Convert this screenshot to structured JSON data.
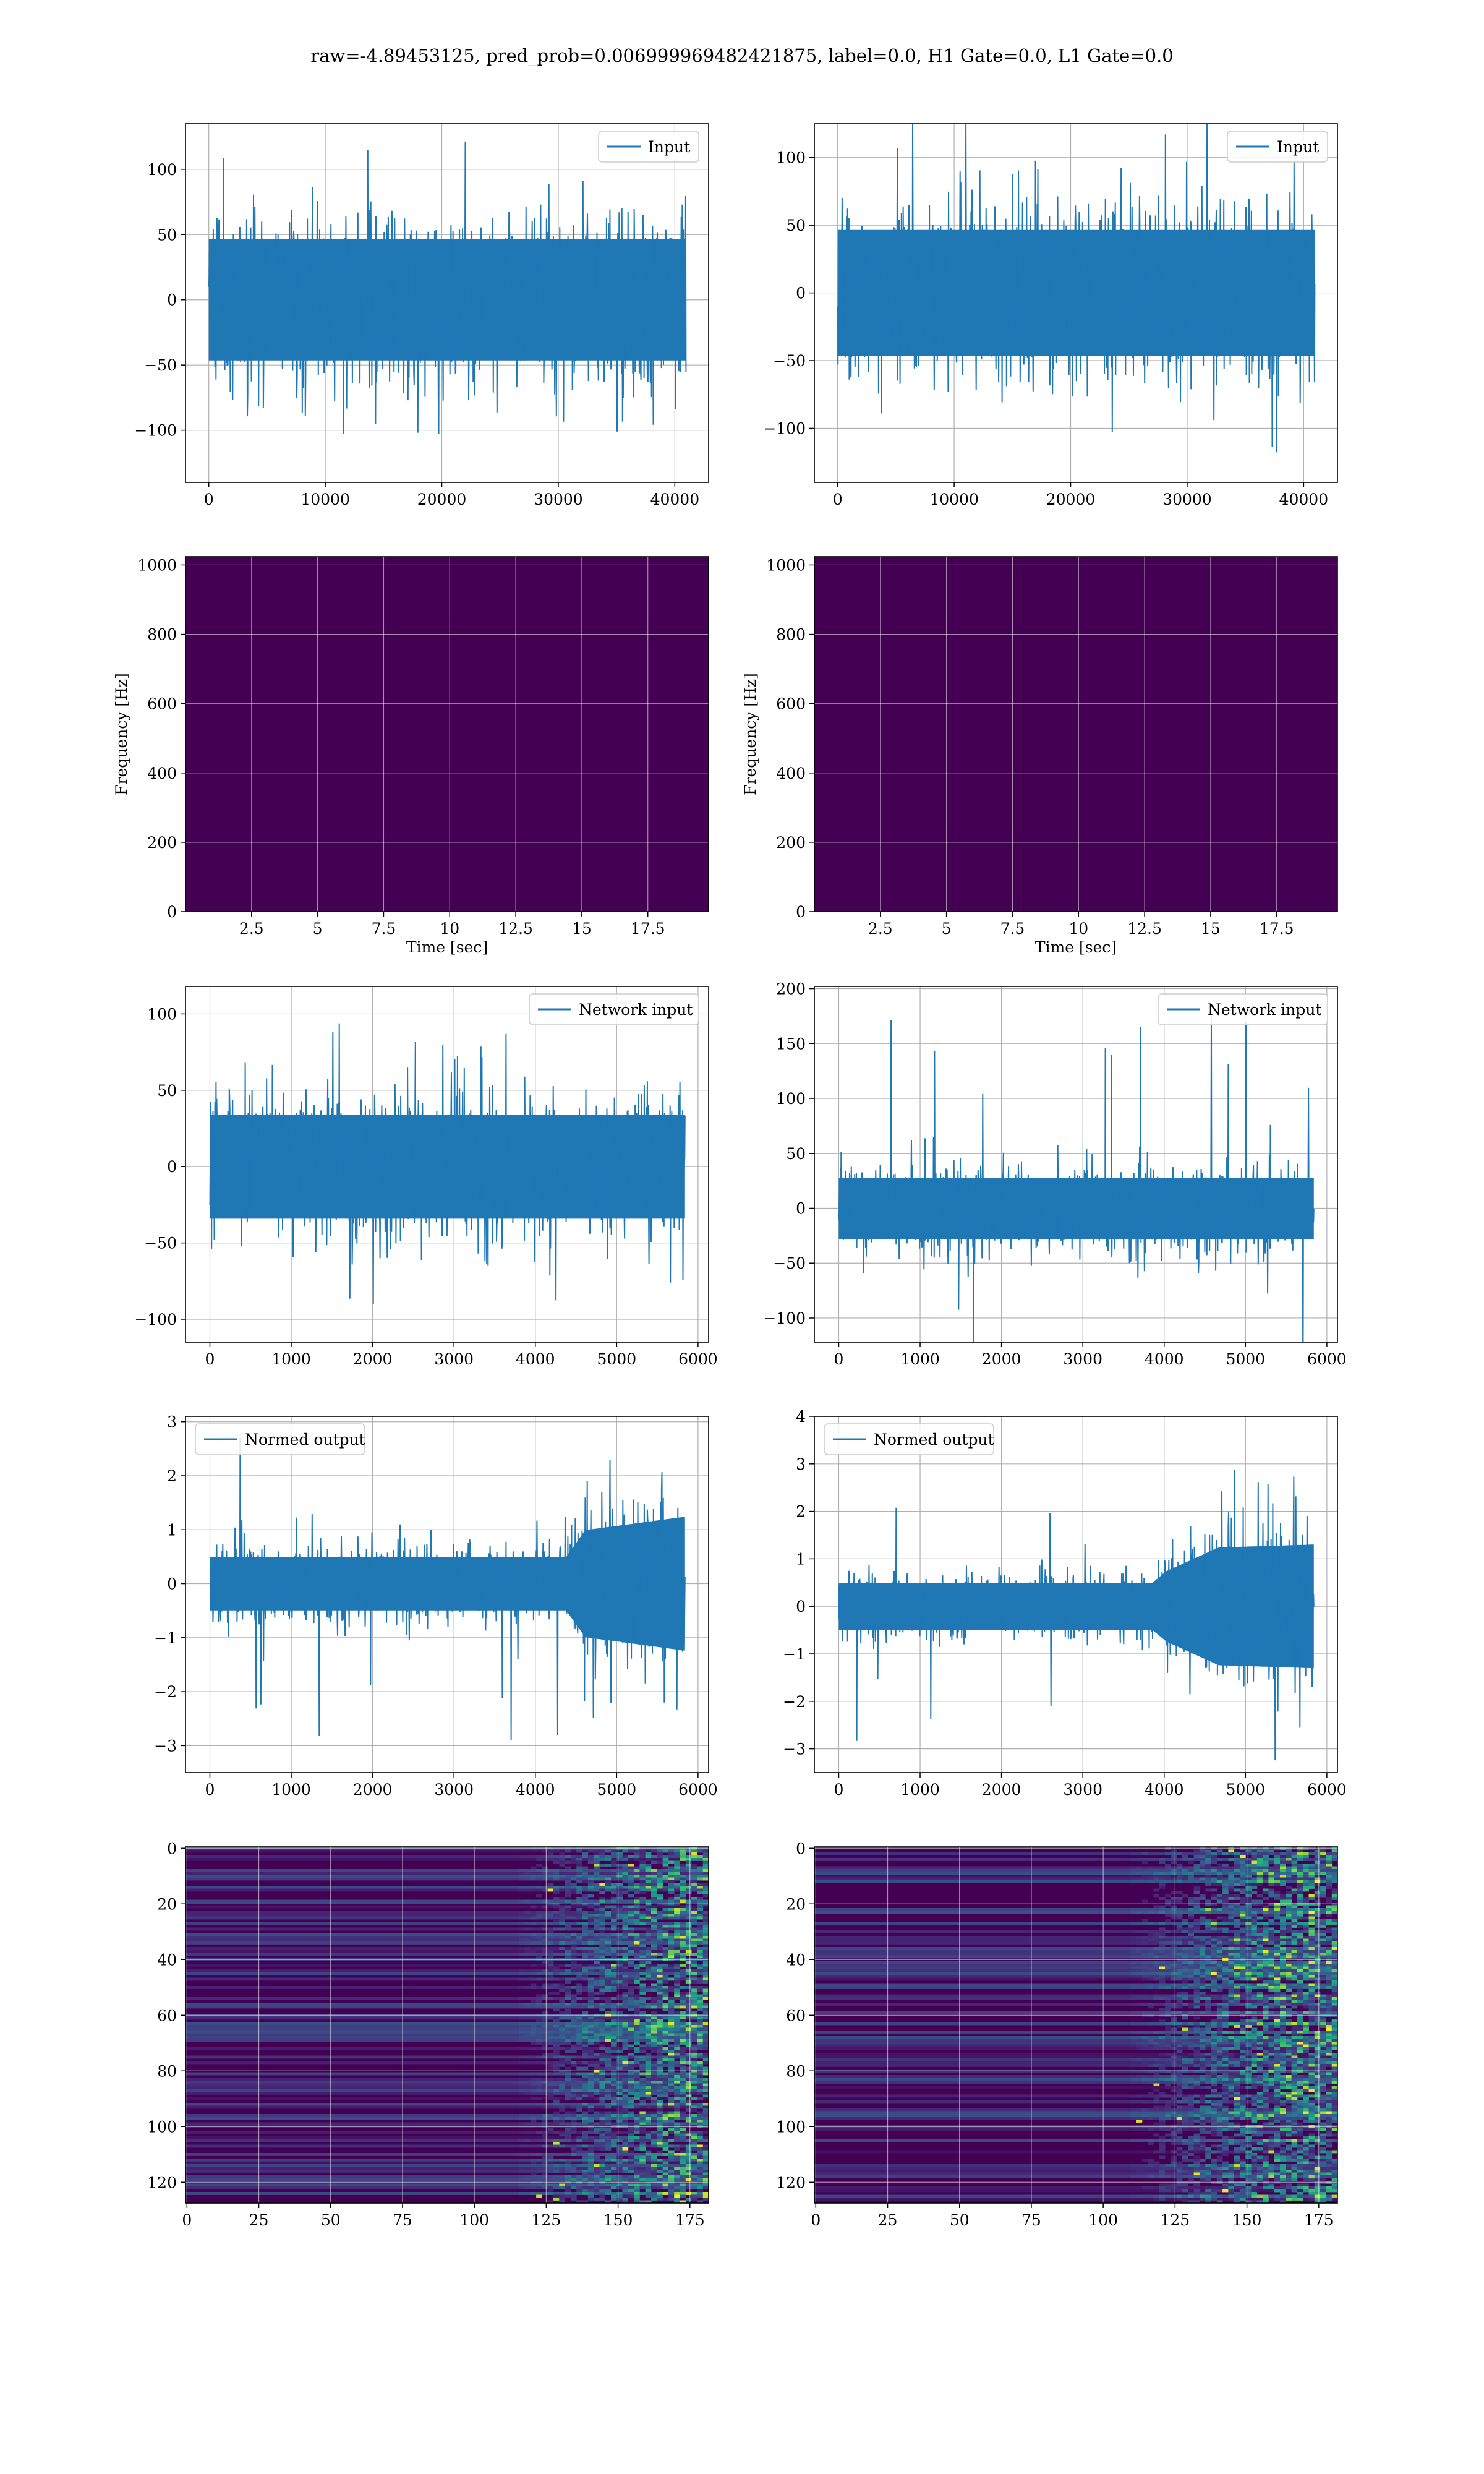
{
  "title": "raw=-4.89453125, pred_prob=0.006999969482421875, label=0.0, H1 Gate=0.0, L1 Gate=0.0",
  "colors": {
    "line": "#1f77b4",
    "grid": "#b0b0b0",
    "axes": "#000000"
  },
  "colormap": [
    "#440154",
    "#482475",
    "#414487",
    "#355f8d",
    "#2a788e",
    "#21908d",
    "#22a884",
    "#42be71",
    "#7ad151",
    "#bddf26",
    "#fde725"
  ],
  "chart_data": [
    {
      "type": "line",
      "panel": "row1-left",
      "legend": {
        "label": "Input",
        "loc": "upper right"
      },
      "xlim": [
        -2000,
        42900
      ],
      "ylim": [
        -140,
        135
      ],
      "xticks": [
        0,
        10000,
        20000,
        30000,
        40000
      ],
      "yticks": [
        -100,
        -50,
        0,
        50,
        100
      ],
      "series": [
        {
          "name": "Input",
          "x_range": [
            0,
            40960
          ],
          "typical_amplitude": 75,
          "peak_amplitude": 125,
          "envelope": [
            [
              0,
              75
            ],
            [
              1,
              75
            ]
          ]
        }
      ]
    },
    {
      "type": "line",
      "panel": "row1-right",
      "legend": {
        "label": "Input",
        "loc": "upper right"
      },
      "xlim": [
        -2000,
        42900
      ],
      "ylim": [
        -140,
        125
      ],
      "xticks": [
        0,
        10000,
        20000,
        30000,
        40000
      ],
      "yticks": [
        -100,
        -50,
        0,
        50,
        100
      ],
      "series": [
        {
          "name": "Input",
          "x_range": [
            0,
            40960
          ],
          "typical_amplitude": 75,
          "peak_amplitude": 130,
          "envelope": [
            [
              0,
              75
            ],
            [
              1,
              75
            ]
          ]
        }
      ]
    },
    {
      "type": "heatmap",
      "panel": "row2-left",
      "xlabel": "Time [sec]",
      "ylabel": "Frequency [Hz]",
      "xlim": [
        0,
        19.8
      ],
      "ylim": [
        0,
        1024
      ],
      "xticks": [
        2.5,
        5.0,
        7.5,
        10.0,
        12.5,
        15.0,
        17.5
      ],
      "yticks": [
        0,
        200,
        400,
        600,
        800,
        1000
      ],
      "description_band": [
        [
          440,
          520,
          0.15
        ]
      ]
    },
    {
      "type": "heatmap",
      "panel": "row2-right",
      "xlabel": "Time [sec]",
      "ylabel": "Frequency [Hz]",
      "xlim": [
        0,
        19.8
      ],
      "ylim": [
        0,
        1024
      ],
      "xticks": [
        2.5,
        5.0,
        7.5,
        10.0,
        12.5,
        15.0,
        17.5
      ],
      "yticks": [
        0,
        200,
        400,
        600,
        800,
        1000
      ],
      "description_band": [
        [
          460,
          520,
          0.15
        ]
      ]
    },
    {
      "type": "line",
      "panel": "row3-left",
      "legend": {
        "label": "Network input",
        "loc": "upper right"
      },
      "xlim": [
        -300,
        6130
      ],
      "ylim": [
        -115,
        118
      ],
      "xticks": [
        0,
        1000,
        2000,
        3000,
        4000,
        5000,
        6000
      ],
      "yticks": [
        -100,
        -50,
        0,
        50,
        100
      ],
      "series": [
        {
          "name": "Network input",
          "x_range": [
            0,
            5840
          ],
          "typical_amplitude": 55,
          "peak_amplitude": 105,
          "envelope": [
            [
              0,
              55
            ],
            [
              1,
              55
            ]
          ]
        }
      ]
    },
    {
      "type": "line",
      "panel": "row3-right",
      "legend": {
        "label": "Network input",
        "loc": "upper right"
      },
      "xlim": [
        -300,
        6130
      ],
      "ylim": [
        -122,
        202
      ],
      "xticks": [
        0,
        1000,
        2000,
        3000,
        4000,
        5000,
        6000
      ],
      "yticks": [
        -100,
        -50,
        0,
        50,
        100,
        150,
        200
      ],
      "series": [
        {
          "name": "Network input",
          "x_range": [
            0,
            5840
          ],
          "typical_amplitude": 45,
          "peak_amplitude": 188,
          "envelope": [
            [
              0,
              45
            ],
            [
              1,
              45
            ]
          ]
        }
      ]
    },
    {
      "type": "line",
      "panel": "row4-left",
      "legend": {
        "label": "Normed output",
        "loc": "upper left"
      },
      "xlim": [
        -300,
        6130
      ],
      "ylim": [
        -3.5,
        3.1
      ],
      "xticks": [
        0,
        1000,
        2000,
        3000,
        4000,
        5000,
        6000
      ],
      "yticks": [
        -3,
        -2,
        -1,
        0,
        1,
        2,
        3
      ],
      "series": [
        {
          "name": "Normed output",
          "x_range": [
            0,
            5840
          ],
          "typical_amplitude": 0.8,
          "peak_amplitude": 2.9,
          "envelope": [
            [
              0,
              0.8
            ],
            [
              0.75,
              0.8
            ],
            [
              0.79,
              1.6
            ],
            [
              1,
              2.0
            ]
          ]
        }
      ]
    },
    {
      "type": "line",
      "panel": "row4-right",
      "legend": {
        "label": "Normed output",
        "loc": "upper left"
      },
      "xlim": [
        -300,
        6130
      ],
      "ylim": [
        -3.5,
        4.0
      ],
      "xticks": [
        0,
        1000,
        2000,
        3000,
        4000,
        5000,
        6000
      ],
      "yticks": [
        -3,
        -2,
        -1,
        0,
        1,
        2,
        3,
        4
      ],
      "series": [
        {
          "name": "Normed output",
          "x_range": [
            0,
            5840
          ],
          "typical_amplitude": 0.8,
          "peak_amplitude": 3.7,
          "envelope": [
            [
              0,
              0.8
            ],
            [
              0.66,
              0.8
            ],
            [
              0.69,
              1.2
            ],
            [
              0.8,
              2.0
            ],
            [
              1,
              2.1
            ]
          ]
        }
      ]
    },
    {
      "type": "heatmap",
      "panel": "row5-left",
      "xlim": [
        -0.5,
        181.5
      ],
      "ylim": [
        127.5,
        -0.5
      ],
      "xticks": [
        0,
        25,
        50,
        75,
        100,
        125,
        150,
        175
      ],
      "yticks": [
        0,
        20,
        40,
        60,
        80,
        100,
        120
      ],
      "description_activity_from_x": 115
    },
    {
      "type": "heatmap",
      "panel": "row5-right",
      "xlim": [
        -0.5,
        181.5
      ],
      "ylim": [
        127.5,
        -0.5
      ],
      "xticks": [
        0,
        25,
        50,
        75,
        100,
        125,
        150,
        175
      ],
      "yticks": [
        0,
        20,
        40,
        60,
        80,
        100,
        120
      ],
      "description_activity_from_x": 110
    }
  ]
}
